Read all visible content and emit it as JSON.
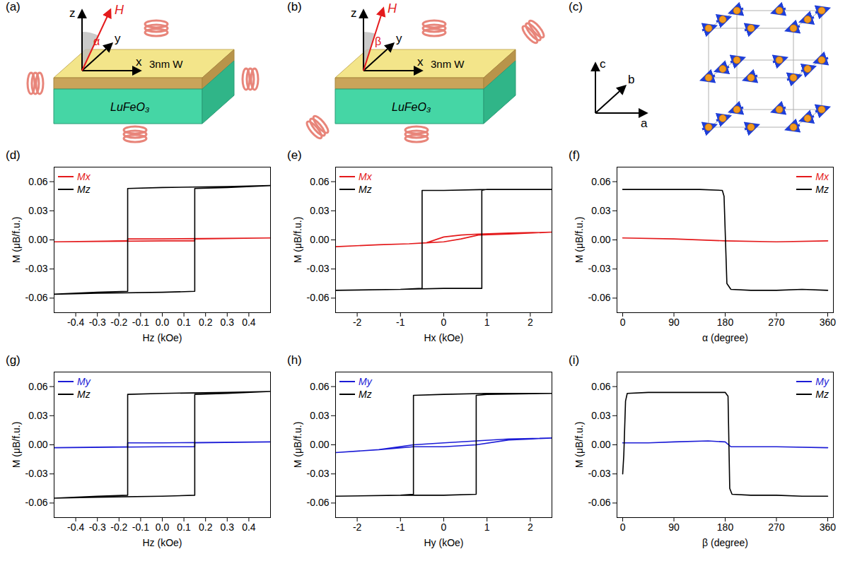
{
  "schematics": [
    {
      "panel": "(a)",
      "labels": {
        "z": "z",
        "field": "H",
        "angle": "α",
        "y": "y",
        "x": "x",
        "layer": "3nm W",
        "substrate": "LuFeO₃"
      }
    },
    {
      "panel": "(b)",
      "labels": {
        "z": "z",
        "field": "H",
        "angle": "β",
        "y": "y",
        "x": "x",
        "layer": "3nm W",
        "substrate": "LuFeO₃"
      }
    },
    {
      "panel": "(c)",
      "labels": {
        "c": "c",
        "b": "b",
        "a": "a"
      }
    }
  ],
  "chart_data": [
    {
      "panel": "(d)",
      "type": "line",
      "x_label": "Hz (kOe)",
      "y_label": "M (μB/f.u.)",
      "xlim": [
        -0.5,
        0.5
      ],
      "xticks": [
        -0.4,
        -0.3,
        -0.2,
        -0.1,
        {
          "value": 0,
          "label": "0.0"
        },
        0.1,
        0.2,
        0.3,
        0.4
      ],
      "ylim": [
        -0.075,
        0.075
      ],
      "yticks": [
        -0.06,
        -0.03,
        {
          "value": 0,
          "label": "0.00"
        },
        0.03,
        0.06
      ],
      "legend": "top-left",
      "series": [
        {
          "name": "Mx",
          "color": "#e41a1c",
          "x": [
            0.5,
            0,
            -0.16,
            -0.16,
            -0.5,
            0,
            0.15,
            0.15,
            0.5
          ],
          "values": [
            0.002,
            0.001,
            0.001,
            -0.001,
            -0.002,
            -0.001,
            -0.001,
            0.001,
            0.002
          ]
        },
        {
          "name": "Mz",
          "color": "#000000",
          "x": [
            0.5,
            0.3,
            0,
            -0.16,
            -0.16,
            -0.3,
            -0.5,
            -0.3,
            0,
            0.15,
            0.15,
            0.3,
            0.5
          ],
          "values": [
            0.056,
            0.055,
            0.054,
            0.053,
            -0.053,
            -0.054,
            -0.056,
            -0.055,
            -0.054,
            -0.053,
            0.053,
            0.054,
            0.056
          ]
        }
      ]
    },
    {
      "panel": "(e)",
      "type": "line",
      "x_label": "Hx (kOe)",
      "y_label": "M (μB/f.u.)",
      "xlim": [
        -2.5,
        2.5
      ],
      "xticks": [
        -2,
        -1,
        0,
        1,
        2
      ],
      "ylim": [
        -0.075,
        0.075
      ],
      "yticks": [
        -0.06,
        -0.03,
        {
          "value": 0,
          "label": "0.00"
        },
        0.03,
        0.06
      ],
      "legend": "top-left",
      "series": [
        {
          "name": "Mx",
          "color": "#e41a1c",
          "x": [
            2.5,
            1.5,
            0.8,
            0.4,
            0,
            -0.4,
            -0.8,
            -1.5,
            -2.5,
            -1.5,
            -0.8,
            -0.4,
            0,
            0.4,
            0.8,
            1.5,
            2.5
          ],
          "values": [
            0.008,
            0.007,
            0.006,
            0.005,
            0.003,
            -0.003,
            -0.004,
            -0.005,
            -0.007,
            -0.005,
            -0.004,
            -0.003,
            -0.002,
            0.001,
            0.005,
            0.006,
            0.008
          ]
        },
        {
          "name": "Mz",
          "color": "#000000",
          "x": [
            2.5,
            1,
            0,
            -0.5,
            -0.5,
            -1,
            -2.5,
            -1,
            0,
            0.88,
            0.88,
            1,
            2.5
          ],
          "values": [
            0.052,
            0.052,
            0.051,
            0.051,
            -0.05,
            -0.051,
            -0.052,
            -0.051,
            -0.05,
            -0.05,
            0.051,
            0.052,
            0.052
          ]
        }
      ]
    },
    {
      "panel": "(f)",
      "type": "line",
      "x_label": "α (degree)",
      "y_label": "M (μB/f.u.)",
      "xlim": [
        -10,
        370
      ],
      "xticks": [
        0,
        90,
        180,
        270,
        360
      ],
      "ylim": [
        -0.075,
        0.075
      ],
      "yticks": [
        -0.06,
        -0.03,
        {
          "value": 0,
          "label": "0.00"
        },
        0.03,
        0.06
      ],
      "legend": "top-right",
      "series": [
        {
          "name": "Mx",
          "color": "#e41a1c",
          "x": [
            0,
            90,
            180,
            270,
            360
          ],
          "values": [
            0.002,
            0.001,
            -0.001,
            -0.002,
            -0.001
          ]
        },
        {
          "name": "Mz",
          "color": "#000000",
          "x": [
            0,
            45,
            90,
            135,
            175,
            178,
            183,
            190,
            225,
            270,
            315,
            360
          ],
          "values": [
            0.052,
            0.052,
            0.052,
            0.052,
            0.051,
            0.045,
            -0.045,
            -0.051,
            -0.052,
            -0.052,
            -0.051,
            -0.052
          ]
        }
      ]
    },
    {
      "panel": "(g)",
      "type": "line",
      "x_label": "Hz (kOe)",
      "y_label": "M (μB/f.u.)",
      "xlim": [
        -0.5,
        0.5
      ],
      "xticks": [
        -0.4,
        -0.3,
        -0.2,
        -0.1,
        {
          "value": 0,
          "label": "0.0"
        },
        0.1,
        0.2,
        0.3,
        0.4
      ],
      "ylim": [
        -0.075,
        0.075
      ],
      "yticks": [
        -0.06,
        -0.03,
        {
          "value": 0,
          "label": "0.00"
        },
        0.03,
        0.06
      ],
      "legend": "top-left",
      "series": [
        {
          "name": "My",
          "color": "#1c1cd6",
          "x": [
            0.5,
            0,
            -0.16,
            -0.16,
            -0.5,
            0,
            0.15,
            0.15,
            0.5
          ],
          "values": [
            0.003,
            0.002,
            0.002,
            -0.002,
            -0.003,
            -0.002,
            -0.002,
            0.002,
            0.003
          ]
        },
        {
          "name": "Mz",
          "color": "#000000",
          "x": [
            0.5,
            0.3,
            0,
            -0.16,
            -0.16,
            -0.3,
            -0.5,
            -0.3,
            0,
            0.15,
            0.15,
            0.3,
            0.5
          ],
          "values": [
            0.055,
            0.054,
            0.053,
            0.052,
            -0.052,
            -0.053,
            -0.055,
            -0.054,
            -0.053,
            -0.052,
            0.052,
            0.053,
            0.055
          ]
        }
      ]
    },
    {
      "panel": "(h)",
      "type": "line",
      "x_label": "Hy (kOe)",
      "y_label": "M (μB/f.u.)",
      "xlim": [
        -2.5,
        2.5
      ],
      "xticks": [
        -2,
        -1,
        0,
        1,
        2
      ],
      "ylim": [
        -0.075,
        0.075
      ],
      "yticks": [
        -0.06,
        -0.03,
        {
          "value": 0,
          "label": "0.00"
        },
        0.03,
        0.06
      ],
      "legend": "top-left",
      "series": [
        {
          "name": "My",
          "color": "#1c1cd6",
          "x": [
            2.5,
            1.5,
            0.75,
            0,
            -0.7,
            -1.5,
            -2.5,
            -1.5,
            -0.7,
            0,
            0.75,
            1.5,
            2.5
          ],
          "values": [
            0.007,
            0.006,
            0.004,
            0.002,
            0,
            -0.005,
            -0.008,
            -0.005,
            -0.002,
            -0.002,
            0,
            0.005,
            0.007
          ]
        },
        {
          "name": "Mz",
          "color": "#000000",
          "x": [
            2.5,
            1,
            0,
            -0.7,
            -0.7,
            -1,
            -2.5,
            -1,
            0,
            0.75,
            0.75,
            1,
            2.5
          ],
          "values": [
            0.053,
            0.053,
            0.052,
            0.051,
            -0.051,
            -0.052,
            -0.053,
            -0.052,
            -0.052,
            -0.051,
            0.051,
            0.052,
            0.053
          ]
        }
      ]
    },
    {
      "panel": "(i)",
      "type": "line",
      "x_label": "β (degree)",
      "y_label": "M (μB/f.u.)",
      "xlim": [
        -10,
        370
      ],
      "xticks": [
        0,
        90,
        180,
        270,
        360
      ],
      "ylim": [
        -0.075,
        0.075
      ],
      "yticks": [
        -0.06,
        -0.03,
        {
          "value": 0,
          "label": "0.00"
        },
        0.03,
        0.06
      ],
      "legend": "top-right",
      "series": [
        {
          "name": "My",
          "color": "#1c1cd6",
          "x": [
            0,
            45,
            90,
            150,
            180,
            190,
            270,
            360
          ],
          "values": [
            0.002,
            0.002,
            0.003,
            0.004,
            0.003,
            -0.002,
            -0.002,
            -0.003
          ]
        },
        {
          "name": "Mz",
          "color": "#000000",
          "x": [
            0,
            2,
            5,
            8,
            45,
            90,
            135,
            180,
            185,
            188,
            192,
            225,
            270,
            315,
            360
          ],
          "values": [
            -0.03,
            -0.01,
            0.045,
            0.053,
            0.054,
            0.054,
            0.054,
            0.054,
            0.05,
            -0.045,
            -0.051,
            -0.052,
            -0.052,
            -0.053,
            -0.053
          ]
        }
      ]
    }
  ]
}
